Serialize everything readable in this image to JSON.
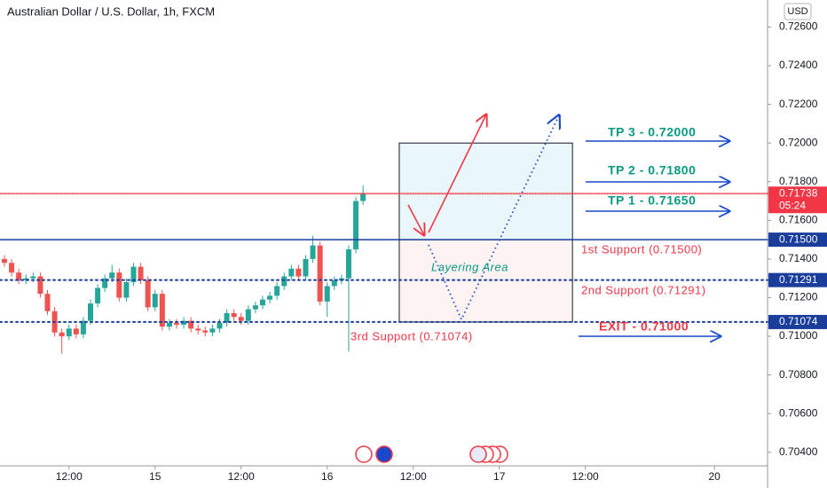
{
  "chart_data": {
    "type": "candlestick",
    "title": "Australian Dollar / U.S. Dollar, 1h, FXCM",
    "currency": "USD",
    "up_color": "#26a69a",
    "down_color": "#ef5350",
    "x": [
      1,
      2,
      3,
      4,
      5,
      6,
      7,
      8,
      9,
      10,
      11,
      12,
      13,
      14,
      15,
      16,
      17,
      18,
      19,
      20,
      21,
      22,
      23,
      24,
      25,
      26,
      27,
      28,
      29,
      30,
      31,
      32,
      33,
      34,
      35,
      36,
      37,
      38,
      39,
      40,
      41,
      42,
      43,
      44,
      45,
      46,
      47,
      48,
      49,
      50,
      51
    ],
    "open": [
      0.714,
      0.7138,
      0.7133,
      0.7129,
      0.713,
      0.7131,
      0.7122,
      0.7113,
      0.7102,
      0.71,
      0.7104,
      0.7101,
      0.7108,
      0.7117,
      0.7125,
      0.713,
      0.7133,
      0.712,
      0.7128,
      0.7136,
      0.7129,
      0.7115,
      0.7122,
      0.7105,
      0.7107,
      0.7106,
      0.7108,
      0.7104,
      0.7103,
      0.7102,
      0.7104,
      0.7107,
      0.7112,
      0.711,
      0.7108,
      0.7114,
      0.7116,
      0.7119,
      0.7121,
      0.7126,
      0.7131,
      0.7135,
      0.7131,
      0.714,
      0.7147,
      0.7118,
      0.7126,
      0.7129,
      0.713,
      0.7145,
      0.717
    ],
    "high": [
      0.7142,
      0.714,
      0.7135,
      0.7132,
      0.7133,
      0.7133,
      0.7124,
      0.7115,
      0.7104,
      0.7106,
      0.7106,
      0.711,
      0.7119,
      0.7127,
      0.7132,
      0.7137,
      0.7135,
      0.713,
      0.7138,
      0.7138,
      0.7131,
      0.7124,
      0.7124,
      0.7109,
      0.7109,
      0.711,
      0.711,
      0.7106,
      0.7105,
      0.7106,
      0.7109,
      0.7114,
      0.7114,
      0.7112,
      0.7116,
      0.7118,
      0.7121,
      0.7123,
      0.7128,
      0.7133,
      0.7137,
      0.7137,
      0.7142,
      0.7152,
      0.7149,
      0.7128,
      0.7131,
      0.7132,
      0.7147,
      0.7172,
      0.7178
    ],
    "low": [
      0.7136,
      0.7131,
      0.7127,
      0.7127,
      0.7128,
      0.712,
      0.7111,
      0.71,
      0.7091,
      0.7098,
      0.7099,
      0.7099,
      0.7106,
      0.7115,
      0.7123,
      0.7128,
      0.7118,
      0.7118,
      0.7126,
      0.7127,
      0.7113,
      0.7113,
      0.7103,
      0.7103,
      0.7104,
      0.7104,
      0.7102,
      0.7101,
      0.71,
      0.71,
      0.7102,
      0.7105,
      0.7108,
      0.7106,
      0.7106,
      0.7112,
      0.7114,
      0.7117,
      0.7119,
      0.7124,
      0.7129,
      0.7129,
      0.7129,
      0.7138,
      0.7116,
      0.711,
      0.7124,
      0.7127,
      0.7092,
      0.7143,
      0.7168
    ],
    "close": [
      0.7138,
      0.7133,
      0.7129,
      0.713,
      0.7131,
      0.7122,
      0.7113,
      0.7102,
      0.71,
      0.7104,
      0.7101,
      0.7108,
      0.7117,
      0.7125,
      0.713,
      0.7133,
      0.712,
      0.7128,
      0.7136,
      0.7129,
      0.7115,
      0.7122,
      0.7105,
      0.7107,
      0.7106,
      0.7108,
      0.7104,
      0.7103,
      0.7102,
      0.7104,
      0.7107,
      0.7112,
      0.711,
      0.7108,
      0.7114,
      0.7116,
      0.7119,
      0.7121,
      0.7126,
      0.7131,
      0.7135,
      0.7131,
      0.714,
      0.7147,
      0.7118,
      0.7126,
      0.7129,
      0.713,
      0.7145,
      0.717,
      0.7174
    ],
    "xlim": [
      0.38,
      107.4
    ],
    "xticks": [
      {
        "value": 10,
        "label": "12:00"
      },
      {
        "value": 22,
        "label": "15"
      },
      {
        "value": 34,
        "label": "12:00"
      },
      {
        "value": 46,
        "label": "16"
      },
      {
        "value": 58,
        "label": "12:00"
      },
      {
        "value": 70,
        "label": "17"
      },
      {
        "value": 82,
        "label": "12:00"
      },
      {
        "value": 100,
        "label": "20"
      }
    ],
    "ylim": [
      0.7033,
      0.7274
    ],
    "yticks": [
      {
        "value": 0.726,
        "label": "0.72600"
      },
      {
        "value": 0.724,
        "label": "0.72400"
      },
      {
        "value": 0.722,
        "label": "0.72200"
      },
      {
        "value": 0.72,
        "label": "0.72000"
      },
      {
        "value": 0.718,
        "label": "0.71800"
      },
      {
        "value": 0.716,
        "label": "0.71600"
      },
      {
        "value": 0.714,
        "label": "0.71400"
      },
      {
        "value": 0.712,
        "label": "0.71200"
      },
      {
        "value": 0.71,
        "label": "0.71000"
      },
      {
        "value": 0.708,
        "label": "0.70800"
      },
      {
        "value": 0.706,
        "label": "0.70600"
      },
      {
        "value": 0.704,
        "label": "0.70400"
      }
    ],
    "levels": [
      {
        "value": 0.715,
        "label": "0.71500",
        "color": "#1a3d9c",
        "style": "solid"
      },
      {
        "value": 0.71291,
        "label": "0.71291",
        "color": "#1a3d9c",
        "style": "dotted"
      },
      {
        "value": 0.71074,
        "label": "0.71074",
        "color": "#1a3d9c",
        "style": "dotted"
      },
      {
        "value": 0.71738,
        "label": "0.71738",
        "countdown": "05:24",
        "color": "#f23645",
        "style": "dotted"
      }
    ],
    "box": {
      "x": [
        56.05,
        80.2
      ],
      "top": 0.72,
      "mid": 0.715,
      "bottom": 0.71074
    },
    "annotations": [
      {
        "text": "TP 3 - 0.72000",
        "color": "#089981"
      },
      {
        "text": "TP 2 - 0.71800",
        "color": "#089981"
      },
      {
        "text": "TP 1 - 0.71650",
        "color": "#089981"
      },
      {
        "text": "1st Support (0.71500)",
        "color": "#f23645"
      },
      {
        "text": "2nd Support (0.71291)",
        "color": "#f23645"
      },
      {
        "text": "3rd Support (0.71074)",
        "color": "#f23645"
      },
      {
        "text": "Layering Area",
        "color": "#089981"
      },
      {
        "text": "EXIT - 0.71000",
        "color": "#f23645"
      }
    ]
  }
}
